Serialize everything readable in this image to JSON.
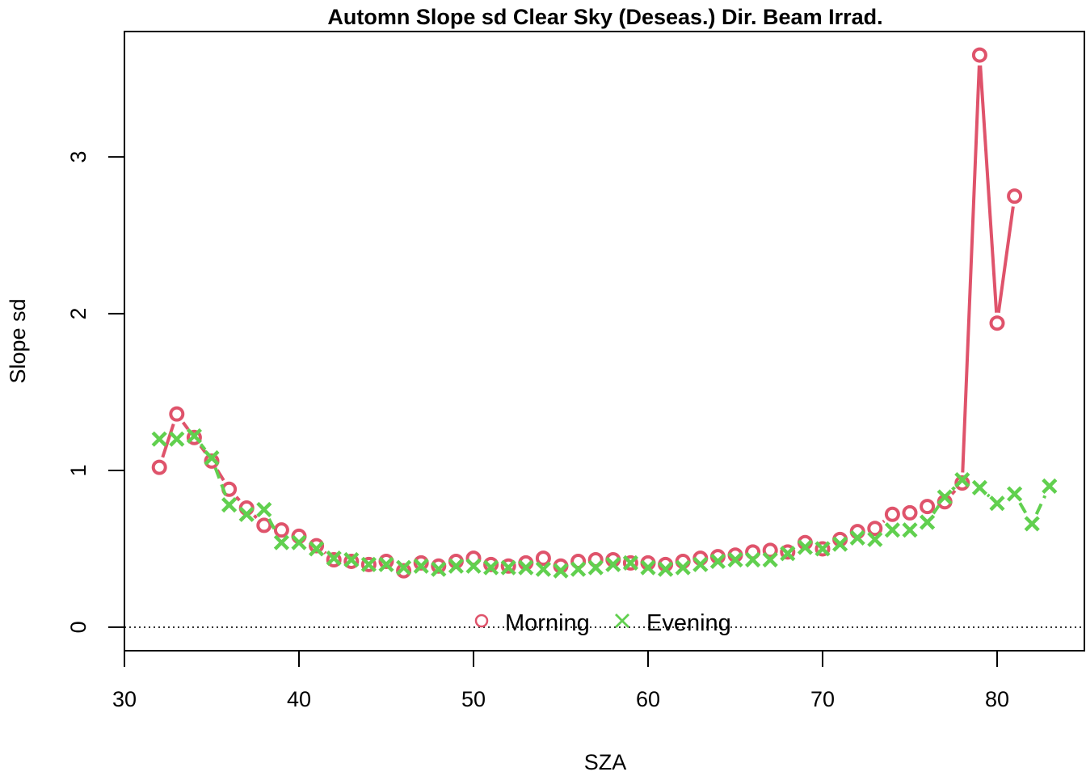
{
  "chart_data": {
    "type": "line",
    "title": "Automn Slope sd Clear Sky (Deseas.) Dir. Beam Irrad.",
    "xlabel": "SZA",
    "ylabel": "Slope sd",
    "xlim": [
      30,
      85
    ],
    "ylim": [
      -0.15,
      3.8
    ],
    "x_ticks": [
      "30",
      "40",
      "50",
      "60",
      "70",
      "80"
    ],
    "y_ticks": [
      "0",
      "1",
      "2",
      "3"
    ],
    "reference_line": {
      "y": 0,
      "style": "dotted"
    },
    "legend_position": "bottom-center",
    "series": [
      {
        "name": "Morning",
        "color": "#DF536B",
        "marker": "circle",
        "line_style": "solid",
        "x": [
          32,
          33,
          34,
          35,
          36,
          37,
          38,
          39,
          40,
          41,
          42,
          43,
          44,
          45,
          46,
          47,
          48,
          49,
          50,
          51,
          52,
          53,
          54,
          55,
          56,
          57,
          58,
          59,
          60,
          61,
          62,
          63,
          64,
          65,
          66,
          67,
          68,
          69,
          70,
          71,
          72,
          73,
          74,
          75,
          76,
          77,
          78,
          79,
          80,
          81
        ],
        "values": [
          1.02,
          1.36,
          1.21,
          1.06,
          0.88,
          0.76,
          0.65,
          0.62,
          0.58,
          0.52,
          0.43,
          0.42,
          0.4,
          0.42,
          0.36,
          0.41,
          0.39,
          0.42,
          0.44,
          0.4,
          0.39,
          0.41,
          0.44,
          0.39,
          0.42,
          0.43,
          0.43,
          0.41,
          0.41,
          0.4,
          0.42,
          0.44,
          0.45,
          0.46,
          0.48,
          0.49,
          0.48,
          0.54,
          0.5,
          0.56,
          0.61,
          0.63,
          0.72,
          0.73,
          0.77,
          0.8,
          0.92,
          3.65,
          1.94,
          2.75
        ]
      },
      {
        "name": "Evening",
        "color": "#61D04F",
        "marker": "cross",
        "line_style": "dashed",
        "x": [
          32,
          33,
          34,
          35,
          36,
          37,
          38,
          39,
          40,
          41,
          42,
          43,
          44,
          45,
          46,
          47,
          48,
          49,
          50,
          51,
          52,
          53,
          54,
          55,
          56,
          57,
          58,
          59,
          60,
          61,
          62,
          63,
          64,
          65,
          66,
          67,
          68,
          69,
          70,
          71,
          72,
          73,
          74,
          75,
          76,
          77,
          78,
          79,
          80,
          81,
          82,
          83
        ],
        "values": [
          1.2,
          1.2,
          1.22,
          1.08,
          0.78,
          0.72,
          0.75,
          0.54,
          0.54,
          0.5,
          0.44,
          0.43,
          0.4,
          0.4,
          0.38,
          0.39,
          0.37,
          0.39,
          0.39,
          0.38,
          0.38,
          0.38,
          0.37,
          0.36,
          0.37,
          0.38,
          0.4,
          0.41,
          0.38,
          0.37,
          0.38,
          0.4,
          0.42,
          0.43,
          0.43,
          0.43,
          0.47,
          0.51,
          0.5,
          0.53,
          0.57,
          0.56,
          0.62,
          0.62,
          0.67,
          0.83,
          0.94,
          0.89,
          0.79,
          0.85,
          0.66,
          0.9
        ]
      }
    ]
  }
}
